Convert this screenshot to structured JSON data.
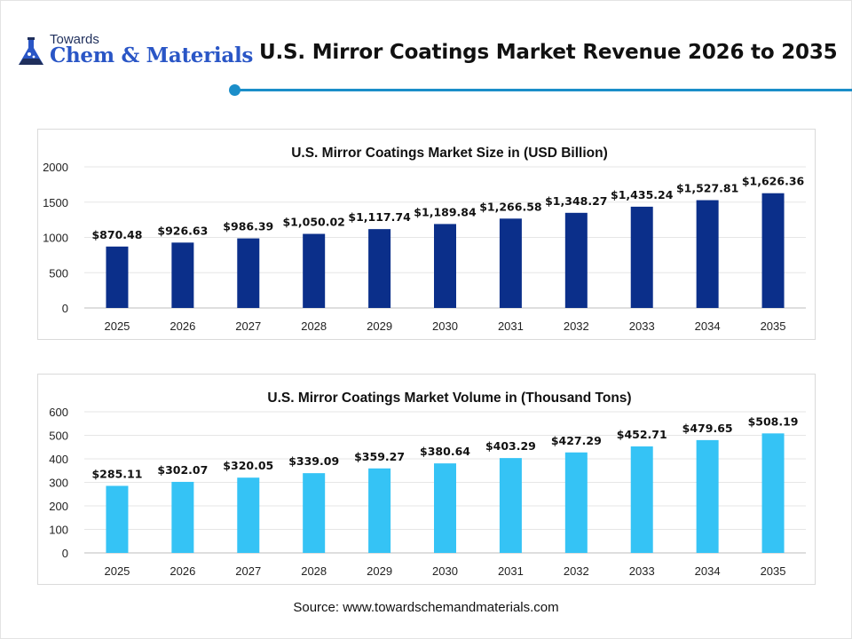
{
  "header": {
    "logo_small": "Towards",
    "logo_big": "Chem & Materials",
    "title": "U.S. Mirror Coatings Market Revenue 2026 to 2035"
  },
  "source": "Source: www.towardschemandmaterials.com",
  "colors": {
    "accent_line": "#1b8ec9",
    "bar_revenue": "#0b2f8a",
    "bar_volume": "#35c3f5",
    "logo_text": "#2a56c6"
  },
  "chart_data": [
    {
      "type": "bar",
      "title": "U.S. Mirror Coatings Market Size in (USD Billion)",
      "categories": [
        "2025",
        "2026",
        "2027",
        "2028",
        "2029",
        "2030",
        "2031",
        "2032",
        "2033",
        "2034",
        "2035"
      ],
      "values": [
        870.48,
        926.63,
        986.39,
        1050.02,
        1117.74,
        1189.84,
        1266.58,
        1348.27,
        1435.24,
        1527.81,
        1626.36
      ],
      "value_labels": [
        "$870.48",
        "$926.63",
        "$986.39",
        "$1,050.02",
        "$1,117.74",
        "$1,189.84",
        "$1,266.58",
        "$1,348.27",
        "$1,435.24",
        "$1,527.81",
        "$1,626.36"
      ],
      "ylim": [
        0,
        2000
      ],
      "yticks": [
        "0",
        "500",
        "1000",
        "1500",
        "2000"
      ],
      "grid": true,
      "color": "#0b2f8a"
    },
    {
      "type": "bar",
      "title": "U.S. Mirror Coatings Market Volume in (Thousand Tons)",
      "categories": [
        "2025",
        "2026",
        "2027",
        "2028",
        "2029",
        "2030",
        "2031",
        "2032",
        "2033",
        "2034",
        "2035"
      ],
      "values": [
        285.11,
        302.07,
        320.05,
        339.09,
        359.27,
        380.64,
        403.29,
        427.29,
        452.71,
        479.65,
        508.19
      ],
      "value_labels": [
        "$285.11",
        "$302.07",
        "$320.05",
        "$339.09",
        "$359.27",
        "$380.64",
        "$403.29",
        "$427.29",
        "$452.71",
        "$479.65",
        "$508.19"
      ],
      "ylim": [
        0,
        600
      ],
      "yticks": [
        "0",
        "100",
        "200",
        "300",
        "400",
        "500",
        "600"
      ],
      "grid": true,
      "color": "#35c3f5"
    }
  ]
}
